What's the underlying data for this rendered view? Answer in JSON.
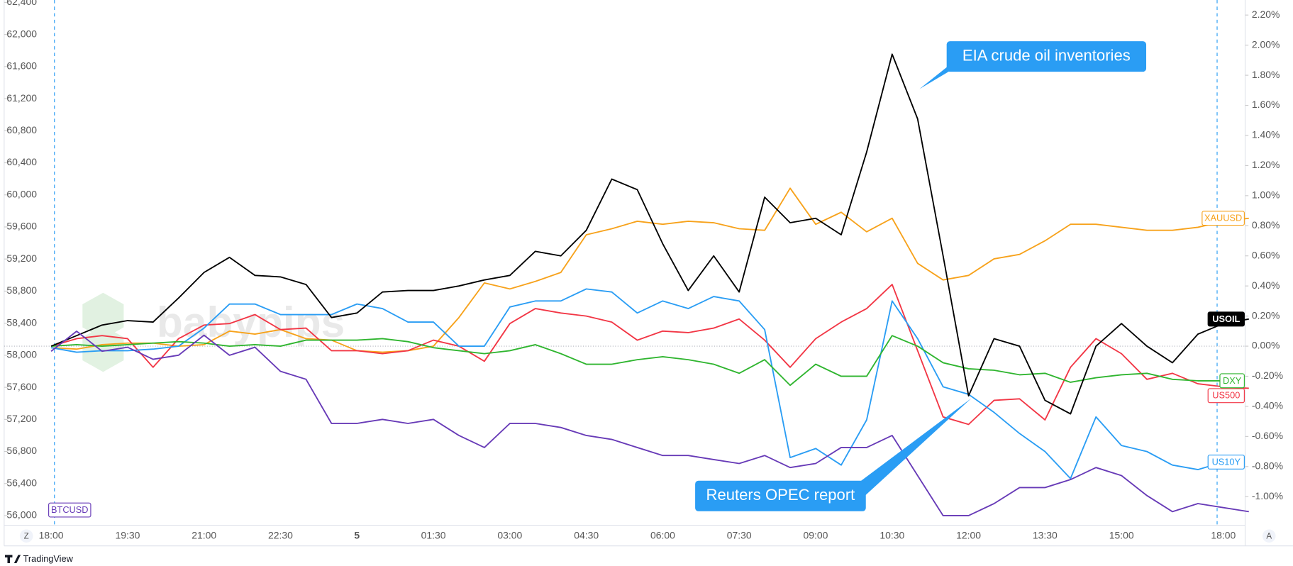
{
  "chart_data": {
    "type": "line",
    "x": [
      "18:00",
      null,
      null,
      "19:30",
      null,
      null,
      "21:00",
      null,
      null,
      "22:30",
      null,
      null,
      "5",
      null,
      null,
      "01:30",
      null,
      null,
      "03:00",
      null,
      null,
      "04:30",
      null,
      null,
      "06:00",
      null,
      null,
      "07:30",
      null,
      null,
      "09:00",
      null,
      null,
      "10:30",
      null,
      null,
      "12:00",
      null,
      null,
      "13:30",
      null,
      null,
      "15:00",
      null,
      null,
      null,
      "18:00",
      null
    ],
    "ylim": [
      55880,
      62430
    ],
    "yticks": [
      {
        "value": 56000,
        "label": "56,000"
      },
      {
        "value": 56400,
        "label": "56,400"
      },
      {
        "value": 56800,
        "label": "56,800"
      },
      {
        "value": 57200,
        "label": "57,200"
      },
      {
        "value": 57600,
        "label": "57,600"
      },
      {
        "value": 58000,
        "label": "58,000"
      },
      {
        "value": 58400,
        "label": "58,400"
      },
      {
        "value": 58800,
        "label": "58,800"
      },
      {
        "value": 59200,
        "label": "59,200"
      },
      {
        "value": 59600,
        "label": "59,600"
      },
      {
        "value": 60000,
        "label": "60,000"
      },
      {
        "value": 60400,
        "label": "60,400"
      },
      {
        "value": 60800,
        "label": "60,800"
      },
      {
        "value": 61200,
        "label": "61,200"
      },
      {
        "value": 61600,
        "label": "61,600"
      },
      {
        "value": 62000,
        "label": "62,000"
      },
      {
        "value": 62400,
        "label": "62,400"
      }
    ],
    "y2lim": [
      -1.19,
      2.3
    ],
    "y2ticks": [
      {
        "value": -1.0,
        "label": "-1.00%"
      },
      {
        "value": -0.8,
        "label": "-0.80%"
      },
      {
        "value": -0.6,
        "label": "-0.60%"
      },
      {
        "value": -0.4,
        "label": "-0.40%"
      },
      {
        "value": -0.2,
        "label": "-0.20%"
      },
      {
        "value": 0,
        "label": "0.00%"
      },
      {
        "value": 0.2,
        "label": "0.20%"
      },
      {
        "value": 0.4,
        "label": "0.40%"
      },
      {
        "value": 0.6,
        "label": "0.60%"
      },
      {
        "value": 0.8,
        "label": "0.80%"
      },
      {
        "value": 1.0,
        "label": "1.00%"
      },
      {
        "value": 1.2,
        "label": "1.20%"
      },
      {
        "value": 1.4,
        "label": "1.40%"
      },
      {
        "value": 1.6,
        "label": "1.60%"
      },
      {
        "value": 1.8,
        "label": "1.80%"
      },
      {
        "value": 2.0,
        "label": "2.00%"
      },
      {
        "value": 2.2,
        "label": "2.20%"
      }
    ],
    "series": [
      {
        "name": "XAUUSD",
        "color": "#f7a21b",
        "axis": "y2",
        "values": [
          -0.01,
          -0.02,
          0.01,
          0.02,
          0.02,
          0.0,
          0.01,
          0.1,
          0.08,
          0.11,
          0.05,
          0.04,
          -0.03,
          -0.04,
          -0.03,
          0.0,
          0.19,
          0.42,
          0.38,
          0.43,
          0.49,
          0.74,
          0.78,
          0.83,
          0.81,
          0.83,
          0.82,
          0.78,
          0.77,
          1.05,
          0.81,
          0.89,
          0.76,
          0.85,
          0.55,
          0.44,
          0.47,
          0.58,
          0.61,
          0.7,
          0.81,
          0.81,
          0.79,
          0.77,
          0.77,
          0.79,
          0.83,
          0.85
        ]
      },
      {
        "name": "US500",
        "color": "#f23645",
        "axis": "y2",
        "values": [
          0,
          0.05,
          0.07,
          0.05,
          -0.14,
          0.05,
          0.14,
          0.15,
          0.21,
          0.11,
          0.12,
          -0.03,
          -0.03,
          -0.05,
          -0.03,
          0.04,
          0.0,
          -0.1,
          0.15,
          0.25,
          0.22,
          0.2,
          0.16,
          0.04,
          0.1,
          0.09,
          0.12,
          0.18,
          0.04,
          -0.14,
          0.05,
          0.16,
          0.25,
          0.41,
          -0.03,
          -0.47,
          -0.52,
          -0.36,
          -0.35,
          -0.49,
          -0.14,
          0.05,
          -0.05,
          -0.22,
          -0.18,
          -0.25,
          -0.27,
          -0.28
        ]
      },
      {
        "name": "US10Y",
        "color": "#2a9df4",
        "axis": "y2",
        "values": [
          -0.01,
          -0.04,
          -0.03,
          -0.03,
          -0.02,
          0,
          0.12,
          0.28,
          0.28,
          0.21,
          0.21,
          0.21,
          0.28,
          0.25,
          0.16,
          0.16,
          0.0,
          0.0,
          0.26,
          0.3,
          0.3,
          0.38,
          0.36,
          0.22,
          0.3,
          0.25,
          0.33,
          0.3,
          0.11,
          -0.74,
          -0.68,
          -0.79,
          -0.49,
          0.3,
          0.05,
          -0.27,
          -0.32,
          -0.44,
          -0.58,
          -0.7,
          -0.88,
          -0.47,
          -0.66,
          -0.7,
          -0.79,
          -0.82,
          -0.77,
          null
        ]
      },
      {
        "name": "DXY",
        "color": "#2fb52f",
        "axis": "y2",
        "values": [
          0,
          0.01,
          0,
          0.01,
          0.02,
          0.03,
          0.02,
          0,
          0.01,
          0,
          0.04,
          0.04,
          0.04,
          0.05,
          0.03,
          -0.01,
          -0.03,
          -0.05,
          -0.03,
          0.01,
          -0.05,
          -0.12,
          -0.12,
          -0.09,
          -0.07,
          -0.09,
          -0.12,
          -0.18,
          -0.09,
          -0.26,
          -0.12,
          -0.2,
          -0.2,
          0.07,
          0.0,
          -0.11,
          -0.15,
          -0.16,
          -0.19,
          -0.18,
          -0.24,
          -0.21,
          -0.19,
          -0.18,
          -0.22,
          -0.23,
          -0.23,
          null
        ]
      },
      {
        "name": "USOIL",
        "color": "#000000",
        "axis": "y2",
        "values": [
          0,
          0.07,
          0.14,
          0.17,
          0.16,
          0.32,
          0.49,
          0.59,
          0.47,
          0.46,
          0.41,
          0.19,
          0.22,
          0.36,
          0.37,
          0.37,
          0.4,
          0.44,
          0.47,
          0.63,
          0.6,
          0.77,
          1.11,
          1.04,
          0.68,
          0.37,
          0.6,
          0.36,
          0.99,
          0.82,
          0.85,
          0.74,
          1.29,
          1.94,
          1.51,
          0.6,
          -0.33,
          0.05,
          0.0,
          -0.36,
          -0.45,
          0.0,
          0.15,
          0.0,
          -0.11,
          0.08,
          0.15,
          0.18
        ]
      },
      {
        "name": "BTCUSD",
        "color": "#673ab7",
        "axis": "y",
        "values": [
          58050,
          58300,
          58050,
          58100,
          57950,
          58000,
          58250,
          58000,
          58100,
          57800,
          57700,
          57150,
          57150,
          57200,
          57150,
          57200,
          57000,
          56850,
          57150,
          57150,
          57100,
          57000,
          56950,
          56850,
          56750,
          56750,
          56700,
          56650,
          56750,
          56600,
          56650,
          56850,
          56850,
          57000,
          56500,
          56000,
          56000,
          56150,
          56350,
          56350,
          56450,
          56600,
          56500,
          56250,
          56050,
          56150,
          56100,
          56050
        ]
      }
    ],
    "annotations": [
      {
        "text": "EIA crude oil inventories"
      },
      {
        "text": "Reuters OPEC report"
      }
    ],
    "watermark": "babypips",
    "buttons": [
      "Z",
      "A"
    ],
    "footer": "TradingView"
  }
}
